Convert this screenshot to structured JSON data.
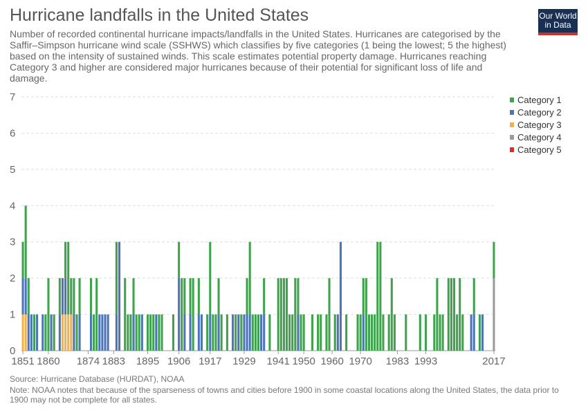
{
  "header": {
    "title": "Hurricane landfalls in the United States",
    "subtitle": "Number of recorded continental hurricane impacts/landfalls in the United States. Hurricanes are categorised by the Saffir–Simpson hurricane wind scale (SSHWS) which classifies by five categories (1 being the lowest; 5 the highest) based on the intensity of sustained winds. This scale estimates potential property damage. Hurricanes reaching Category 3 and higher are considered major hurricanes because of their potential for significant loss of life and damage."
  },
  "logo": {
    "line1": "Our World",
    "line2": "in Data"
  },
  "footer": {
    "source": "Source: Hurricane Database (HURDAT), NOAA",
    "note": "Note: NOAA notes that because of the sparseness of towns and cities before 1900 in some coastal locations along the United States, the data prior to 1900 may not be complete for all states."
  },
  "chart_data": {
    "type": "bar",
    "stacked": true,
    "x_start": 1851,
    "x_end": 2017,
    "x_ticks": [
      1851,
      1860,
      1874,
      1883,
      1895,
      1906,
      1917,
      1929,
      1941,
      1950,
      1960,
      1970,
      1983,
      1993,
      2017
    ],
    "y_ticks": [
      0,
      1,
      2,
      3,
      4,
      5,
      6,
      7
    ],
    "ylim": [
      0,
      7
    ],
    "grid": "horizontal dashed",
    "legend_position": "right",
    "series_colors": {
      "Category 1": "#3fa34d",
      "Category 2": "#4e74b8",
      "Category 3": "#f3b245",
      "Category 4": "#9b9b9b",
      "Category 5": "#d4312a"
    },
    "series": [
      {
        "name": "Category 1",
        "values": [
          1,
          2,
          1,
          0,
          1,
          0,
          0,
          0,
          1,
          2,
          0,
          1,
          0,
          1,
          0,
          1,
          2,
          1,
          1,
          1,
          1,
          0,
          0,
          0,
          1,
          1,
          2,
          0,
          0,
          0,
          0,
          0,
          0,
          2,
          0,
          0,
          2,
          1,
          1,
          1,
          1,
          1,
          0,
          0,
          1,
          1,
          1,
          0,
          1,
          1,
          0,
          0,
          0,
          1,
          0,
          1,
          2,
          1,
          0,
          1,
          2,
          0,
          1,
          0,
          0,
          1,
          2,
          1,
          1,
          1,
          1,
          0,
          1,
          0,
          0,
          1,
          0,
          1,
          0,
          1,
          2,
          1,
          1,
          1,
          0,
          1,
          0,
          1,
          0,
          0,
          2,
          2,
          2,
          2,
          1,
          1,
          2,
          1,
          1,
          1,
          0,
          0,
          1,
          0,
          1,
          1,
          0,
          1,
          2,
          0,
          1,
          0,
          0,
          0,
          1,
          0,
          0,
          0,
          1,
          1,
          1,
          2,
          1,
          1,
          1,
          3,
          3,
          1,
          0,
          1,
          2,
          1,
          0,
          0,
          0,
          1,
          0,
          0,
          0,
          0,
          1,
          0,
          1,
          0,
          0,
          1,
          2,
          1,
          1,
          0,
          2,
          2,
          2,
          1,
          2,
          1,
          0,
          0,
          0,
          1,
          0,
          1,
          0,
          0,
          0,
          0,
          1
        ]
      },
      {
        "name": "Category 2",
        "values": [
          1,
          1,
          1,
          1,
          0,
          1,
          0,
          1,
          0,
          0,
          1,
          0,
          0,
          1,
          1,
          1,
          0,
          0,
          1,
          0,
          1,
          0,
          0,
          0,
          1,
          0,
          0,
          1,
          1,
          1,
          1,
          0,
          0,
          1,
          3,
          0,
          0,
          0,
          0,
          1,
          0,
          0,
          1,
          0,
          0,
          0,
          0,
          1,
          0,
          0,
          0,
          0,
          0,
          0,
          0,
          2,
          0,
          1,
          0,
          1,
          0,
          0,
          1,
          1,
          0,
          0,
          1,
          0,
          0,
          1,
          0,
          0,
          0,
          0,
          1,
          0,
          1,
          0,
          1,
          1,
          1,
          0,
          0,
          0,
          1,
          1,
          0,
          0,
          0,
          0,
          0,
          0,
          0,
          0,
          0,
          0,
          0,
          1,
          0,
          0,
          0,
          0,
          0,
          0,
          0,
          0,
          0,
          0,
          0,
          0,
          0,
          1,
          3,
          0,
          0,
          0,
          0,
          0,
          0,
          0,
          1,
          0,
          0,
          0,
          0,
          0,
          0,
          0,
          0,
          0,
          0,
          0,
          0,
          0,
          0,
          0,
          0,
          0,
          0,
          0,
          0,
          0,
          0,
          0,
          0,
          0,
          0,
          0,
          0,
          0,
          0,
          0,
          0,
          0,
          0,
          0,
          0,
          0,
          1,
          1,
          0,
          0,
          1,
          0,
          0,
          0,
          0
        ]
      },
      {
        "name": "Category 3",
        "values": [
          1,
          1,
          0,
          0,
          0,
          0,
          0,
          0,
          0,
          0,
          0,
          0,
          0,
          0,
          1,
          1,
          1,
          1,
          0,
          0,
          0,
          0,
          0,
          0,
          0,
          0,
          0,
          0,
          0,
          0,
          0,
          0,
          0,
          0,
          0,
          0,
          0,
          0,
          0,
          0,
          0,
          0,
          0,
          0,
          0,
          0,
          0,
          0,
          0,
          0,
          0,
          0,
          0,
          0,
          0,
          0,
          0,
          0,
          0,
          0,
          0,
          0,
          0,
          0,
          0,
          0,
          0,
          0,
          0,
          0,
          0,
          0,
          0,
          0,
          0,
          0,
          0,
          0,
          0,
          0,
          0,
          0,
          0,
          0,
          0,
          0,
          0,
          0,
          0,
          0,
          0,
          0,
          0,
          0,
          0,
          0,
          0,
          0,
          0,
          0,
          0,
          0,
          0,
          0,
          0,
          0,
          0,
          0,
          0,
          0,
          0,
          0,
          0,
          0,
          0,
          0,
          0,
          0,
          0,
          0,
          0,
          0,
          0,
          0,
          0,
          0,
          0,
          0,
          0,
          0,
          0,
          0,
          0,
          0,
          0,
          0,
          0,
          0,
          0,
          0,
          0,
          0,
          0,
          0,
          0,
          0,
          0,
          0,
          0,
          0,
          0,
          0,
          0,
          0,
          0,
          0,
          0,
          0,
          0,
          0,
          0,
          0,
          0,
          0,
          0,
          0,
          0
        ]
      },
      {
        "name": "Category 4",
        "values": [
          0,
          0,
          0,
          0,
          0,
          0,
          0,
          0,
          0,
          0,
          0,
          0,
          0,
          0,
          0,
          0,
          0,
          0,
          0,
          0,
          0,
          0,
          0,
          0,
          0,
          0,
          0,
          0,
          0,
          0,
          0,
          0,
          0,
          0,
          0,
          0,
          0,
          0,
          0,
          0,
          0,
          0,
          0,
          0,
          0,
          0,
          0,
          0,
          0,
          0,
          0,
          0,
          0,
          0,
          0,
          0,
          0,
          0,
          0,
          0,
          0,
          0,
          0,
          0,
          0,
          0,
          0,
          0,
          0,
          0,
          0,
          0,
          0,
          0,
          0,
          0,
          0,
          0,
          0,
          0,
          0,
          0,
          0,
          0,
          0,
          0,
          0,
          0,
          0,
          0,
          0,
          0,
          0,
          0,
          0,
          0,
          0,
          0,
          0,
          0,
          0,
          0,
          0,
          0,
          0,
          0,
          0,
          0,
          0,
          0,
          0,
          0,
          0,
          0,
          0,
          0,
          0,
          0,
          0,
          0,
          0,
          0,
          0,
          0,
          0,
          0,
          0,
          0,
          0,
          0,
          0,
          0,
          0,
          0,
          0,
          0,
          0,
          0,
          0,
          0,
          0,
          0,
          0,
          0,
          0,
          0,
          0,
          0,
          0,
          0,
          0,
          0,
          0,
          0,
          0,
          0,
          0,
          0,
          0,
          0,
          0,
          0,
          0,
          0,
          0,
          0,
          2
        ]
      },
      {
        "name": "Category 5",
        "values": [
          0,
          0,
          0,
          0,
          0,
          0,
          0,
          0,
          0,
          0,
          0,
          0,
          0,
          0,
          0,
          0,
          0,
          0,
          0,
          0,
          0,
          0,
          0,
          0,
          0,
          0,
          0,
          0,
          0,
          0,
          0,
          0,
          0,
          0,
          0,
          0,
          0,
          0,
          0,
          0,
          0,
          0,
          0,
          0,
          0,
          0,
          0,
          0,
          0,
          0,
          0,
          0,
          0,
          0,
          0,
          0,
          0,
          0,
          0,
          0,
          0,
          0,
          0,
          0,
          0,
          0,
          0,
          0,
          0,
          0,
          0,
          0,
          0,
          0,
          0,
          0,
          0,
          0,
          0,
          0,
          0,
          0,
          0,
          0,
          0,
          0,
          0,
          0,
          0,
          0,
          0,
          0,
          0,
          0,
          0,
          0,
          0,
          0,
          0,
          0,
          0,
          0,
          0,
          0,
          0,
          0,
          0,
          0,
          0,
          0,
          0,
          0,
          0,
          0,
          0,
          0,
          0,
          0,
          0,
          0,
          0,
          0,
          0,
          0,
          0,
          0,
          0,
          0,
          0,
          0,
          0,
          0,
          0,
          0,
          0,
          0,
          0,
          0,
          0,
          0,
          0,
          0,
          0,
          0,
          0,
          0,
          0,
          0,
          0,
          0,
          0,
          0,
          0,
          0,
          0,
          0,
          0,
          0,
          0,
          0,
          0,
          0,
          0,
          0,
          0,
          0,
          0
        ]
      }
    ]
  }
}
